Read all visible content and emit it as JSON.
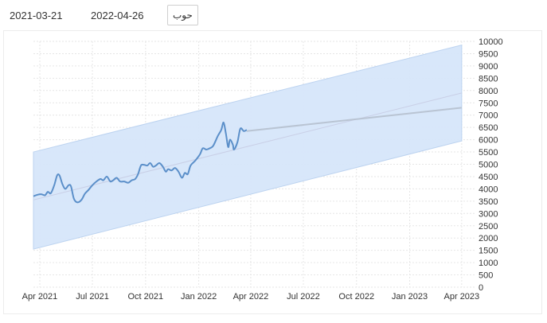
{
  "controls": {
    "start_date": "2021-03-21",
    "end_date": "2022-04-26",
    "go_label": "حوب"
  },
  "colors": {
    "line": "#5b8fc9",
    "band_fill": "#d6e6fa",
    "band_stroke": "#bcd3f0",
    "forecast": "#b9c4d3"
  },
  "chart_data": {
    "type": "line",
    "x_axis": {
      "min": "2021-03-21",
      "max": "2023-04-26",
      "ticks": [
        "Apr 2021",
        "Jul 2021",
        "Oct 2021",
        "Jan 2022",
        "Apr 2022",
        "Jul 2022",
        "Oct 2022",
        "Jan 2023",
        "Apr 2023"
      ],
      "tick_dates": [
        "2021-04-01",
        "2021-07-01",
        "2021-10-01",
        "2022-01-01",
        "2022-04-01",
        "2022-07-01",
        "2022-10-01",
        "2023-01-01",
        "2023-04-01"
      ]
    },
    "y_axis": {
      "min": 0,
      "max": 10000,
      "step": 500,
      "position": "right",
      "ticks": [
        "0",
        "500",
        "1000",
        "1500",
        "2000",
        "2500",
        "3000",
        "3500",
        "4000",
        "4500",
        "5000",
        "5500",
        "6000",
        "6500",
        "7000",
        "7500",
        "8000",
        "8500",
        "9000",
        "9500",
        "10000"
      ]
    },
    "grid": true,
    "series": [
      {
        "values": [
          [
            "2021-03-21",
            3700
          ],
          [
            "2021-03-28",
            3760
          ],
          [
            "2021-04-04",
            3780
          ],
          [
            "2021-04-10",
            3740
          ],
          [
            "2021-04-15",
            3880
          ],
          [
            "2021-04-20",
            3820
          ],
          [
            "2021-04-26",
            4150
          ],
          [
            "2021-05-01",
            4550
          ],
          [
            "2021-05-05",
            4550
          ],
          [
            "2021-05-10",
            4200
          ],
          [
            "2021-05-15",
            4000
          ],
          [
            "2021-05-21",
            4150
          ],
          [
            "2021-05-25",
            4100
          ],
          [
            "2021-05-30",
            3600
          ],
          [
            "2021-06-05",
            3450
          ],
          [
            "2021-06-12",
            3550
          ],
          [
            "2021-06-18",
            3800
          ],
          [
            "2021-06-24",
            3950
          ],
          [
            "2021-07-01",
            4150
          ],
          [
            "2021-07-08",
            4300
          ],
          [
            "2021-07-15",
            4400
          ],
          [
            "2021-07-20",
            4350
          ],
          [
            "2021-07-26",
            4500
          ],
          [
            "2021-08-01",
            4300
          ],
          [
            "2021-08-06",
            4350
          ],
          [
            "2021-08-12",
            4450
          ],
          [
            "2021-08-18",
            4300
          ],
          [
            "2021-08-25",
            4300
          ],
          [
            "2021-09-01",
            4250
          ],
          [
            "2021-09-07",
            4350
          ],
          [
            "2021-09-13",
            4400
          ],
          [
            "2021-09-18",
            4600
          ],
          [
            "2021-09-23",
            4950
          ],
          [
            "2021-09-28",
            4980
          ],
          [
            "2021-10-04",
            4950
          ],
          [
            "2021-10-09",
            5050
          ],
          [
            "2021-10-14",
            4900
          ],
          [
            "2021-10-19",
            4950
          ],
          [
            "2021-10-25",
            5050
          ],
          [
            "2021-10-31",
            4900
          ],
          [
            "2021-11-05",
            4700
          ],
          [
            "2021-11-09",
            4800
          ],
          [
            "2021-11-15",
            4750
          ],
          [
            "2021-11-21",
            4850
          ],
          [
            "2021-11-27",
            4700
          ],
          [
            "2021-12-03",
            4450
          ],
          [
            "2021-12-08",
            4650
          ],
          [
            "2021-12-13",
            4600
          ],
          [
            "2021-12-18",
            4950
          ],
          [
            "2021-12-26",
            5150
          ],
          [
            "2022-01-03",
            5400
          ],
          [
            "2022-01-08",
            5650
          ],
          [
            "2022-01-14",
            5600
          ],
          [
            "2022-01-20",
            5650
          ],
          [
            "2022-01-26",
            5750
          ],
          [
            "2022-02-03",
            6150
          ],
          [
            "2022-02-09",
            6400
          ],
          [
            "2022-02-13",
            6700
          ],
          [
            "2022-02-17",
            6250
          ],
          [
            "2022-02-21",
            5700
          ],
          [
            "2022-02-24",
            6000
          ],
          [
            "2022-03-01",
            5800
          ],
          [
            "2022-03-03",
            5600
          ],
          [
            "2022-03-09",
            5900
          ],
          [
            "2022-03-14",
            6450
          ],
          [
            "2022-03-20",
            6350
          ],
          [
            "2022-03-25",
            6400
          ]
        ]
      },
      {
        "values": [
          [
            "2022-03-25",
            6350
          ],
          [
            "2023-04-01",
            7300
          ]
        ]
      }
    ],
    "band": {
      "upper": [
        [
          "2021-03-21",
          5500
        ],
        [
          "2023-04-01",
          9850
        ]
      ],
      "lower": [
        [
          "2021-03-21",
          1550
        ],
        [
          "2023-04-01",
          5950
        ]
      ]
    },
    "trend": [
      [
        "2021-03-21",
        3550
      ],
      [
        "2023-04-01",
        7900
      ]
    ]
  }
}
